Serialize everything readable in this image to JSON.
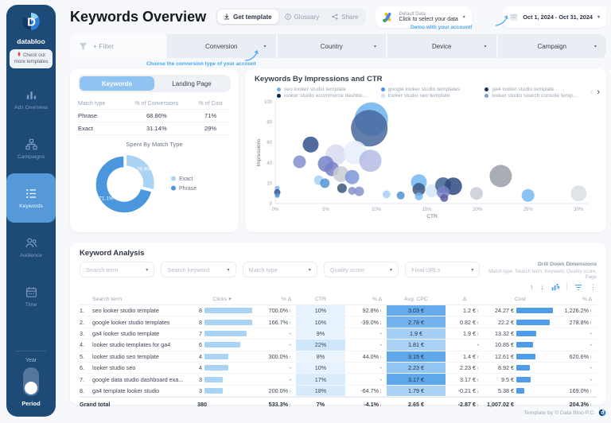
{
  "brand": {
    "name": "databloo",
    "badge": "Check out more templates"
  },
  "sidebar": {
    "items": [
      {
        "icon": "bar-chart-icon",
        "label": "Ads Overview",
        "active": false
      },
      {
        "icon": "sitemap-icon",
        "label": "Campaigns",
        "active": false
      },
      {
        "icon": "list-icon",
        "label": "Keywords",
        "active": true
      },
      {
        "icon": "people-icon",
        "label": "Audience",
        "active": false
      },
      {
        "icon": "calendar-icon",
        "label": "Time",
        "active": false
      }
    ],
    "toggle": {
      "top": "Year",
      "bottom": "Period"
    }
  },
  "header": {
    "title": "Keywords Overview",
    "get_template": "Get template",
    "glossary": "Glossary",
    "share": "Share",
    "data_selector": {
      "line1": "Default Data",
      "line2": "Click to select your data"
    },
    "data_annotation": "Demo with your account!",
    "date_range": "Oct 1, 2024 - Oct 31, 2024"
  },
  "filter_bar": {
    "button": "+ Filter",
    "dropdowns": [
      "Conversion",
      "Country",
      "Device",
      "Campaign"
    ],
    "annotation": "Choose the conversion type of your account"
  },
  "left_panel": {
    "tabs": [
      {
        "label": "Keywords",
        "active": true
      },
      {
        "label": "Landing Page",
        "active": false
      }
    ],
    "match_table": {
      "headers": [
        "Match type",
        "% of Conversions",
        "% of Cost"
      ],
      "rows": [
        [
          "Phrase",
          "68.86%",
          "71%"
        ],
        [
          "Exact",
          "31.14%",
          "29%"
        ]
      ]
    },
    "donut_title": "Spent By Match Type"
  },
  "bubble_panel": {
    "title": "Keywords By Impressions and CTR",
    "legend": [
      {
        "label": "seo looker studio template",
        "color": "#6fb1f0"
      },
      {
        "label": "google looker studio templates",
        "color": "#3f97f3"
      },
      {
        "label": "ga4 looker studio template",
        "color": "#12355e"
      },
      {
        "label": "looker studio ecommerce dashbo...",
        "color": "#0a2450"
      },
      {
        "label": "looker studio seo template",
        "color": "#cde3f9"
      },
      {
        "label": "looker studio search console temp...",
        "color": "#7f9ad2"
      }
    ]
  },
  "chart_data": [
    {
      "type": "pie",
      "donut": true,
      "title": "Spent By Match Type",
      "labels": [
        "Exact",
        "Phrase"
      ],
      "values": [
        28.9,
        71.1
      ],
      "value_labels": [
        "28.9%",
        "71.1%"
      ],
      "colors": [
        "#a9d2f3",
        "#4a97dd"
      ],
      "legend_position": "right"
    },
    {
      "type": "scatter",
      "title": "Keywords By Impressions and CTR",
      "xlabel": "CTR",
      "ylabel": "Impressions",
      "xlim": [
        0,
        31
      ],
      "ylim": [
        0,
        100
      ],
      "x_tick_values": [
        0,
        5,
        10,
        15,
        20,
        25,
        30
      ],
      "x_ticks": [
        "0%",
        "5%",
        "10%",
        "15%",
        "20%",
        "25%",
        "30%"
      ],
      "y_ticks": [
        0,
        20,
        40,
        60,
        80,
        100
      ],
      "points": [
        [
          9.5,
          83,
          21,
          "#6fb1f0"
        ],
        [
          9.3,
          74,
          23,
          "#47699e"
        ],
        [
          3.5,
          58,
          10,
          "#33518e"
        ],
        [
          2.4,
          41,
          8,
          "#8290cc"
        ],
        [
          6.0,
          48,
          13,
          "#d7daf0"
        ],
        [
          7.9,
          50,
          15,
          "#e8effb"
        ],
        [
          9.4,
          42,
          14,
          "#b4bce4"
        ],
        [
          5.0,
          39,
          10,
          "#7583c8"
        ],
        [
          5.6,
          34,
          9,
          "#7583c8"
        ],
        [
          6.5,
          29,
          10,
          "#c9ccd4"
        ],
        [
          7.6,
          26,
          9,
          "#7d96d8"
        ],
        [
          4.3,
          23,
          6,
          "#a6d0f5"
        ],
        [
          4.9,
          20,
          6,
          "#4f94d4"
        ],
        [
          6.6,
          15,
          6,
          "#3d5780"
        ],
        [
          7.6,
          12.5,
          5,
          "#8691cc"
        ],
        [
          8.3,
          12,
          6,
          "#8691cc"
        ],
        [
          11,
          9,
          5,
          "#a6d0f5"
        ],
        [
          12.4,
          8,
          5,
          "#4f94d4"
        ],
        [
          14.2,
          21,
          10,
          "#74b7f3"
        ],
        [
          14.2,
          14,
          8,
          "#3d5780"
        ],
        [
          14.2,
          7,
          5,
          "#74b7f3"
        ],
        [
          15.5,
          12.5,
          8,
          "#d3e6f9"
        ],
        [
          16.6,
          18,
          10,
          "#3f618f"
        ],
        [
          17.6,
          17,
          11,
          "#2e4a7f"
        ],
        [
          16.6,
          11,
          8,
          "#7583c8"
        ],
        [
          16.7,
          5.5,
          5,
          "#5a5f9e"
        ],
        [
          19.9,
          10,
          8,
          "#c9ccd4"
        ],
        [
          22.3,
          27,
          14,
          "#9aa0a8"
        ],
        [
          25,
          8,
          8,
          "#74b7f3"
        ],
        [
          30,
          10,
          10,
          "#dcdfe3"
        ],
        [
          0.2,
          15,
          3,
          "#74b7f3"
        ],
        [
          0.2,
          11,
          4,
          "#33518e"
        ],
        [
          0.2,
          8,
          3,
          "#4f94d4"
        ]
      ]
    }
  ],
  "keyword_analysis": {
    "title": "Keyword Analysis",
    "filters": [
      "Search term",
      "Search keyword",
      "Match type",
      "Quality score",
      "Final URLs"
    ],
    "drill_down": {
      "title": "Drill Down Dimensions",
      "subtitle": "Match type, Search term, Keyword, Quality score, Page"
    },
    "table": {
      "headers": [
        "Search term",
        "Clicks ▾",
        "% Δ",
        "CTR",
        "% Δ",
        "Avg. CPC",
        "Δ",
        "Cost",
        "% Δ"
      ],
      "clicks_max": 8,
      "cost_max": 24.27,
      "rows": [
        {
          "rank": "1.",
          "term": "seo looker studio template",
          "clicks": 8,
          "clicks_delta": {
            "text": "700.0%",
            "dir": "up"
          },
          "ctr": {
            "text": "10%",
            "value": 10
          },
          "ctr_delta": {
            "text": "92.8%",
            "dir": "up"
          },
          "cpc": {
            "text": "3.03 €",
            "value": 3.03
          },
          "cpc_delta": {
            "text": "1.2 €",
            "dir": "up"
          },
          "cost": {
            "text": "24.27 €",
            "value": 24.27
          },
          "cost_delta": {
            "text": "1,226.2%",
            "dir": "up"
          }
        },
        {
          "rank": "2.",
          "term": "google looker studio templates",
          "clicks": 8,
          "clicks_delta": {
            "text": "166.7%",
            "dir": "up"
          },
          "ctr": {
            "text": "10%",
            "value": 10
          },
          "ctr_delta": {
            "text": "-39.0%",
            "dir": "down"
          },
          "cpc": {
            "text": "2.78 €",
            "value": 2.78
          },
          "cpc_delta": {
            "text": "0.82 €",
            "dir": "up"
          },
          "cost": {
            "text": "22.2 €",
            "value": 22.2
          },
          "cost_delta": {
            "text": "278.8%",
            "dir": "up"
          }
        },
        {
          "rank": "3.",
          "term": "ga4 looker studio template",
          "clicks": 7,
          "clicks_delta": null,
          "ctr": {
            "text": "9%",
            "value": 9
          },
          "ctr_delta": null,
          "cpc": {
            "text": "1.9 €",
            "value": 1.9
          },
          "cpc_delta": {
            "text": "1.9 €",
            "dir": "up"
          },
          "cost": {
            "text": "13.32 €",
            "value": 13.32
          },
          "cost_delta": null
        },
        {
          "rank": "4.",
          "term": "looker studio templates for ga4",
          "clicks": 6,
          "clicks_delta": null,
          "ctr": {
            "text": "22%",
            "value": 22
          },
          "ctr_delta": null,
          "cpc": {
            "text": "1.81 €",
            "value": 1.81
          },
          "cpc_delta": null,
          "cost": {
            "text": "10.85 €",
            "value": 10.85
          },
          "cost_delta": null
        },
        {
          "rank": "5.",
          "term": "looker studio seo template",
          "clicks": 4,
          "clicks_delta": {
            "text": "300.0%",
            "dir": "up"
          },
          "ctr": {
            "text": "8%",
            "value": 8
          },
          "ctr_delta": {
            "text": "44.0%",
            "dir": "up"
          },
          "cpc": {
            "text": "3.15 €",
            "value": 3.15
          },
          "cpc_delta": {
            "text": "1.4 €",
            "dir": "up"
          },
          "cost": {
            "text": "12.61 €",
            "value": 12.61
          },
          "cost_delta": {
            "text": "620.6%",
            "dir": "up"
          }
        },
        {
          "rank": "6.",
          "term": "looker studio seo",
          "clicks": 4,
          "clicks_delta": null,
          "ctr": {
            "text": "10%",
            "value": 10
          },
          "ctr_delta": null,
          "cpc": {
            "text": "2.23 €",
            "value": 2.23
          },
          "cpc_delta": {
            "text": "2.23 €",
            "dir": "up"
          },
          "cost": {
            "text": "8.92 €",
            "value": 8.92
          },
          "cost_delta": null
        },
        {
          "rank": "7.",
          "term": "google data studio dashboard exa...",
          "clicks": 3,
          "clicks_delta": null,
          "ctr": {
            "text": "17%",
            "value": 17
          },
          "ctr_delta": null,
          "cpc": {
            "text": "3.17 €",
            "value": 3.17
          },
          "cpc_delta": {
            "text": "3.17 €",
            "dir": "up"
          },
          "cost": {
            "text": "9.5 €",
            "value": 9.5
          },
          "cost_delta": null
        },
        {
          "rank": "8.",
          "term": "ga4 template looker studio",
          "clicks": 3,
          "clicks_delta": {
            "text": "200.0%",
            "dir": "up"
          },
          "ctr": {
            "text": "18%",
            "value": 18
          },
          "ctr_delta": {
            "text": "-64.7%",
            "dir": "down"
          },
          "cpc": {
            "text": "1.79 €",
            "value": 1.79
          },
          "cpc_delta": {
            "text": "-0.21 €",
            "dir": "down"
          },
          "cost": {
            "text": "5.38 €",
            "value": 5.38
          },
          "cost_delta": {
            "text": "169.0%",
            "dir": "up"
          }
        }
      ],
      "grand_total": {
        "label": "Grand total",
        "clicks": "380",
        "clicks_delta": {
          "text": "533.3%",
          "dir": "up"
        },
        "ctr": {
          "text": "7%"
        },
        "ctr_delta": {
          "text": "-4.1%",
          "dir": "down"
        },
        "cpc": {
          "text": "2.65 €"
        },
        "cpc_delta": {
          "text": "-2.87 €",
          "dir": "down"
        },
        "cost": {
          "text": "1,007.02 €"
        },
        "cost_delta": {
          "text": "204.3%",
          "dir": "up"
        }
      }
    }
  },
  "footer": {
    "credit": "Template by © Data Bloo P.C."
  },
  "colors": {
    "accent": "#3f97f3",
    "green": "#1fa15e",
    "red": "#e5484d",
    "navy": "#1e4a78"
  }
}
